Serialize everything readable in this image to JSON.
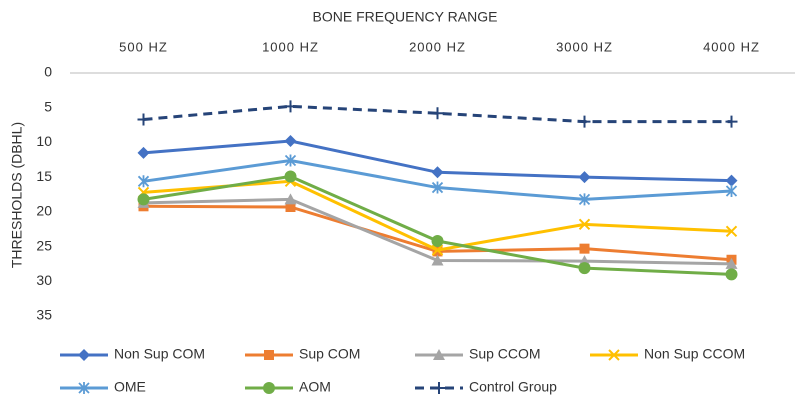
{
  "chart_data": {
    "type": "line",
    "title": "BONE FREQUENCY RANGE",
    "y_label": "THRESHOLDS (DBHL)",
    "categories": [
      "500 HZ",
      "1000 HZ",
      "2000 HZ",
      "3000 HZ",
      "4000 HZ"
    ],
    "ylim": [
      0,
      35
    ],
    "yticks": [
      0,
      5,
      10,
      15,
      20,
      25,
      30,
      35
    ],
    "y_inverted": true,
    "grid": false,
    "legend": "bottom",
    "series": [
      {
        "name": "Non Sup COM",
        "color": "#4472c4",
        "marker": "diamond",
        "values": [
          11.5,
          9.8,
          14.3,
          15,
          15.5
        ]
      },
      {
        "name": "Sup COM",
        "color": "#ed7d31",
        "marker": "square",
        "values": [
          19.2,
          19.3,
          25.7,
          25.3,
          26.9
        ]
      },
      {
        "name": "Sup CCOM",
        "color": "#a5a5a5",
        "marker": "triangle",
        "values": [
          18.7,
          18.2,
          27,
          27.1,
          27.5
        ]
      },
      {
        "name": "Non Sup CCOM",
        "color": "#ffc000",
        "marker": "x",
        "values": [
          17.2,
          15.6,
          25.5,
          21.8,
          22.8
        ]
      },
      {
        "name": "OME",
        "color": "#5b9bd5",
        "marker": "star",
        "values": [
          15.6,
          12.6,
          16.5,
          18.2,
          17
        ]
      },
      {
        "name": "AOM",
        "color": "#70ad47",
        "marker": "circle",
        "values": [
          18.2,
          14.9,
          24.2,
          28.1,
          29
        ]
      },
      {
        "name": "Control Group",
        "color": "#264478",
        "marker": "plus",
        "dashed": true,
        "values": [
          6.7,
          4.8,
          5.8,
          7,
          7
        ]
      }
    ]
  }
}
